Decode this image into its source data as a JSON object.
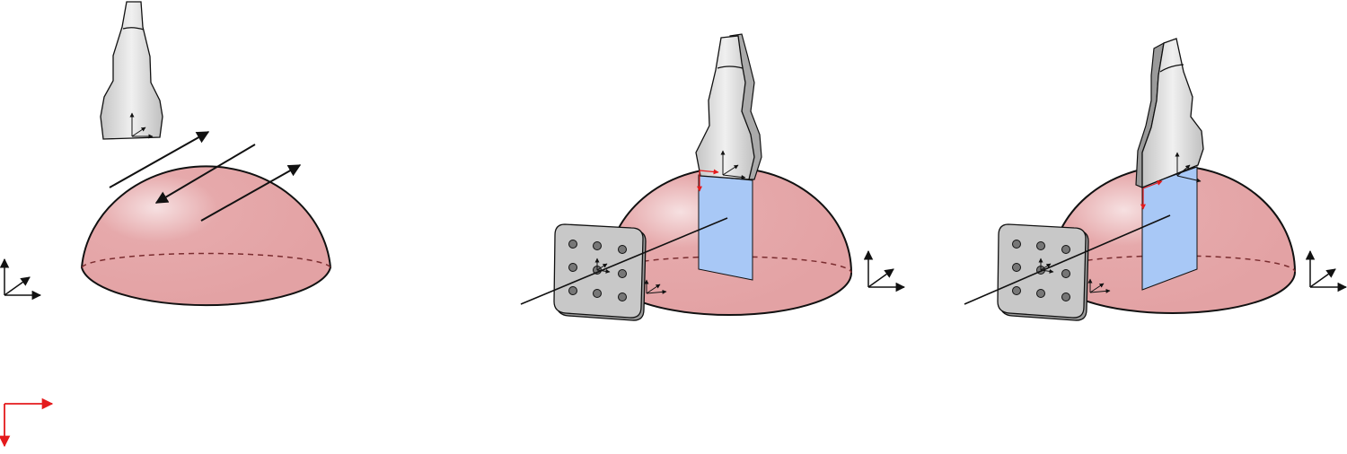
{
  "figure": {
    "panels": [
      {
        "id": "panel-a"
      },
      {
        "id": "panel-b"
      },
      {
        "id": "panel-c"
      }
    ]
  },
  "colors": {
    "dome_fill": "#e6a9ab",
    "dome_highlight": "#f6e0e1",
    "probe_fill": "#d6d6d6",
    "probe_highlight": "#f0f0f0",
    "image_plane": "#a8c8f6",
    "marker_plate": "#c8c8c8",
    "marker_dot": "#777777",
    "outline": "#111111",
    "red_axes": "#e41a1c"
  },
  "icons": [
    "ultrasound-probe-icon",
    "hemisphere-phantom-icon",
    "marker-plate-icon",
    "coordinate-frame-icon",
    "image-plane-icon"
  ]
}
